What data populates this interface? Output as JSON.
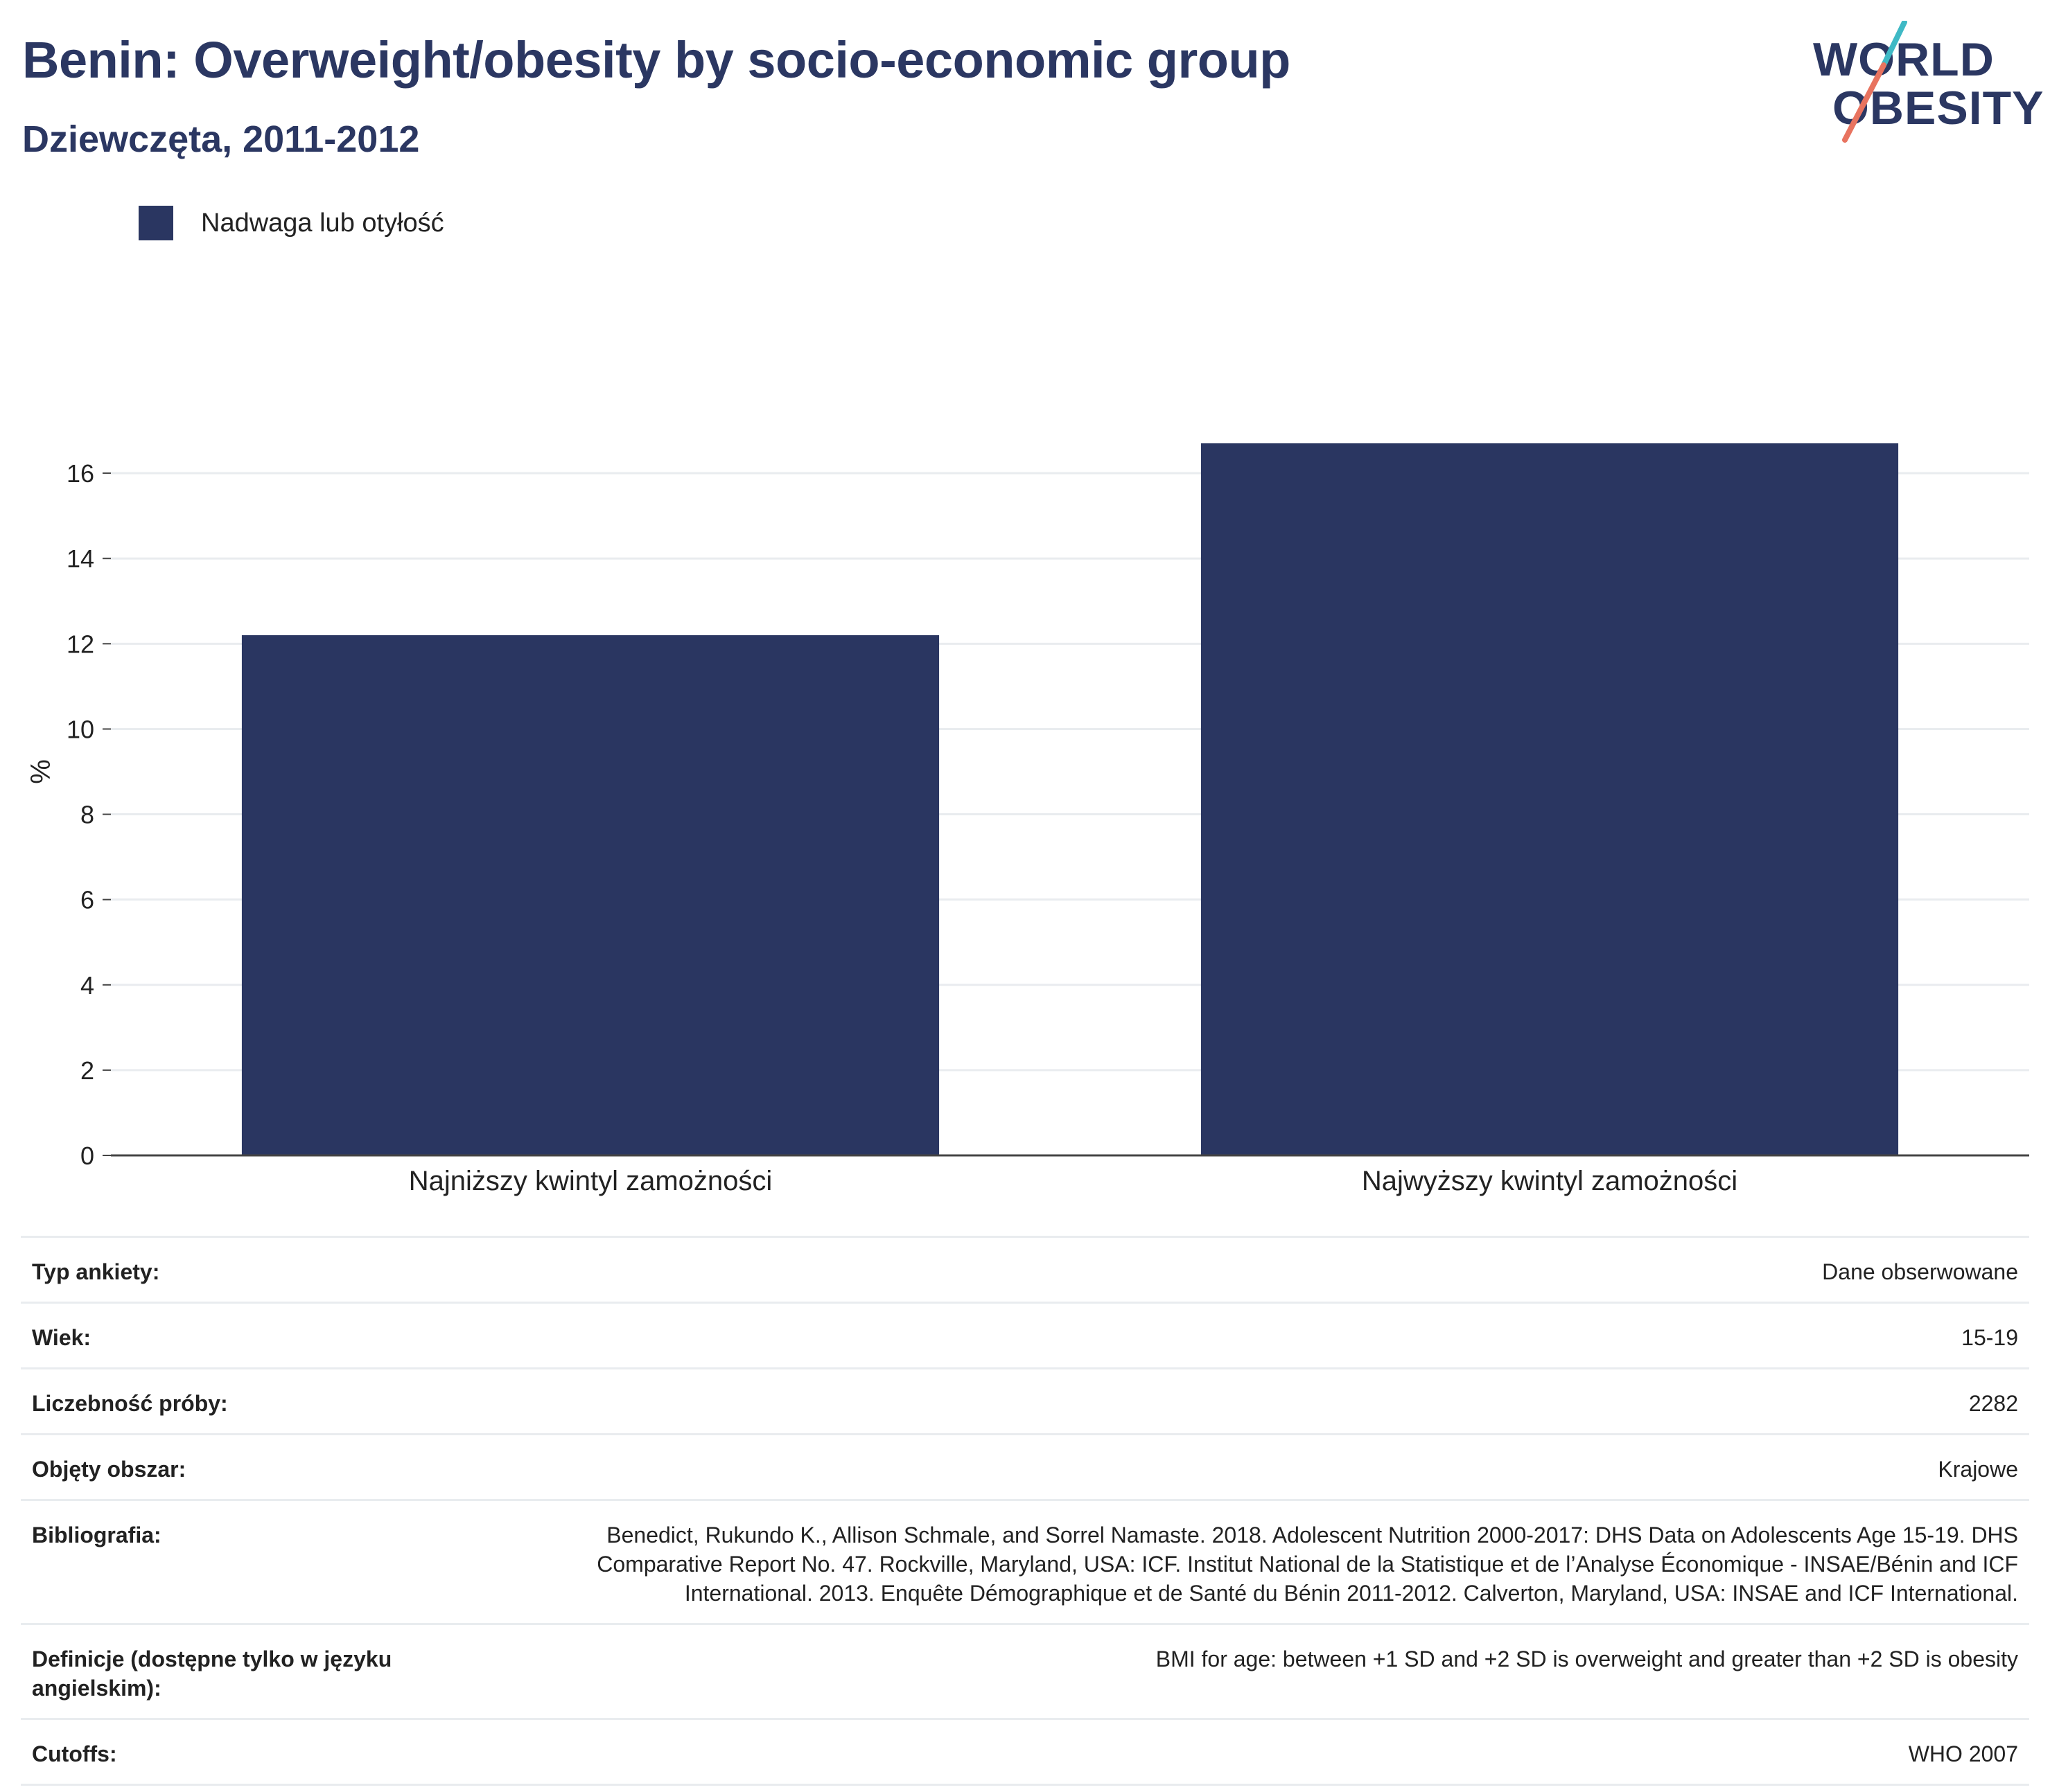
{
  "header": {
    "title": "Benin: Overweight/obesity by socio-economic group",
    "subtitle": "Dziewczęta, 2011-2012"
  },
  "logo": {
    "line1": "WORLD",
    "line2": "OBESITY",
    "colors": {
      "text": "#2b3762",
      "teal": "#3fb9c5",
      "coral": "#e8735f"
    }
  },
  "legend": {
    "label": "Nadwaga lub otyłość",
    "color": "#2a3661"
  },
  "chart_data": {
    "type": "bar",
    "categories": [
      "Najniższy kwintyl zamożności",
      "Najwyższy kwintyl zamożności"
    ],
    "series": [
      {
        "name": "Nadwaga lub otyłość",
        "values": [
          12.2,
          16.7
        ]
      }
    ],
    "title": "Benin: Overweight/obesity by socio-economic group",
    "subtitle": "Dziewczęta, 2011-2012",
    "xlabel": "",
    "ylabel": "%",
    "ylim": [
      0,
      18
    ],
    "yticks": [
      0,
      2,
      4,
      6,
      8,
      10,
      12,
      14,
      16
    ],
    "grid": true,
    "legend_position": "top-left",
    "bar_color": "#2a3661"
  },
  "meta": [
    {
      "key": "Typ ankiety:",
      "value": "Dane obserwowane"
    },
    {
      "key": "Wiek:",
      "value": "15-19"
    },
    {
      "key": "Liczebność próby:",
      "value": "2282"
    },
    {
      "key": "Objęty obszar:",
      "value": "Krajowe"
    },
    {
      "key": "Bibliografia:",
      "value": "Benedict, Rukundo K., Allison Schmale, and Sorrel Namaste. 2018. Adolescent Nutrition 2000-2017: DHS Data on Adolescents Age 15-19. DHS Comparative Report No. 47. Rockville, Maryland, USA: ICF. Institut National de la Statistique et de l’Analyse Économique - INSAE/Bénin and ICF International. 2013. Enquête Démographique et de Santé du Bénin 2011-2012. Calverton, Maryland, USA: INSAE and ICF International."
    },
    {
      "key": "Definicje (dostępne tylko w języku angielskim):",
      "value": "BMI for age: between +1 SD and +2 SD is overweight and greater than +2 SD is obesity"
    },
    {
      "key": "Cutoffs:",
      "value": "WHO 2007"
    }
  ]
}
